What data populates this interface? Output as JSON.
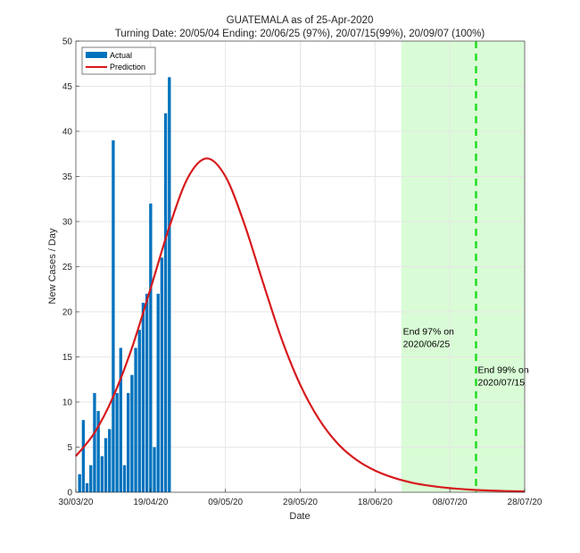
{
  "chart_data": {
    "type": "bar",
    "title": "GUATEMALA as of 25-Apr-2020",
    "subtitle": "Turning Date: 20/05/04  Ending: 20/06/25 (97%), 20/07/15(99%), 20/09/07 (100%)",
    "xlabel": "Date",
    "ylabel": "New Cases / Day",
    "ylim": [
      0,
      50
    ],
    "yticks": [
      0,
      5,
      10,
      15,
      20,
      25,
      30,
      35,
      40,
      45,
      50
    ],
    "xlim_days": [
      0,
      120
    ],
    "x_start_date": "30/03/20",
    "xticks": [
      {
        "day": 0,
        "label": "30/03/20"
      },
      {
        "day": 20,
        "label": "19/04/20"
      },
      {
        "day": 40,
        "label": "09/05/20"
      },
      {
        "day": 60,
        "label": "29/05/20"
      },
      {
        "day": 80,
        "label": "18/06/20"
      },
      {
        "day": 100,
        "label": "08/07/20"
      },
      {
        "day": 120,
        "label": "28/07/20"
      }
    ],
    "grid": true,
    "legend": {
      "position": "top-left",
      "entries": [
        {
          "name": "Actual",
          "color": "#0072BD",
          "kind": "bar"
        },
        {
          "name": "Prediction",
          "color": "#D7191C",
          "kind": "line"
        }
      ]
    },
    "series": [
      {
        "name": "Actual",
        "type": "bar",
        "color": "#0072BD",
        "start_day": 1,
        "values": [
          2,
          8,
          1,
          3,
          11,
          9,
          4,
          6,
          7,
          39,
          11,
          16,
          3,
          11,
          13,
          16,
          18,
          21,
          22,
          32,
          5,
          22,
          26,
          42,
          46
        ]
      },
      {
        "name": "Prediction",
        "type": "line",
        "color": "#D7191C",
        "model": "logistic-derivative",
        "peak_day": 35,
        "peak_value": 37,
        "points": [
          [
            0,
            4.0
          ],
          [
            5,
            6.6
          ],
          [
            10,
            10.6
          ],
          [
            15,
            16.0
          ],
          [
            20,
            22.6
          ],
          [
            25,
            29.4
          ],
          [
            30,
            34.9
          ],
          [
            35,
            37.0
          ],
          [
            40,
            35.0
          ],
          [
            45,
            29.8
          ],
          [
            50,
            23.3
          ],
          [
            55,
            17.0
          ],
          [
            60,
            11.9
          ],
          [
            65,
            8.1
          ],
          [
            70,
            5.4
          ],
          [
            75,
            3.6
          ],
          [
            80,
            2.4
          ],
          [
            85,
            1.6
          ],
          [
            90,
            1.05
          ],
          [
            95,
            0.7
          ],
          [
            100,
            0.46
          ],
          [
            105,
            0.3
          ],
          [
            110,
            0.2
          ],
          [
            115,
            0.13
          ],
          [
            120,
            0.09
          ]
        ]
      }
    ],
    "shaded_region": {
      "from_day": 87,
      "to_day": 120,
      "color": "#D9FCD6"
    },
    "vline": {
      "day": 107,
      "color": "#22DD22",
      "style": "dashed"
    },
    "annotations": [
      {
        "text_lines": [
          "End 97% on",
          "2020/06/25"
        ],
        "day": 87,
        "value": 17.5
      },
      {
        "text_lines": [
          "End 99% on",
          "2020/07/15"
        ],
        "day": 107,
        "value": 13.2
      }
    ]
  }
}
